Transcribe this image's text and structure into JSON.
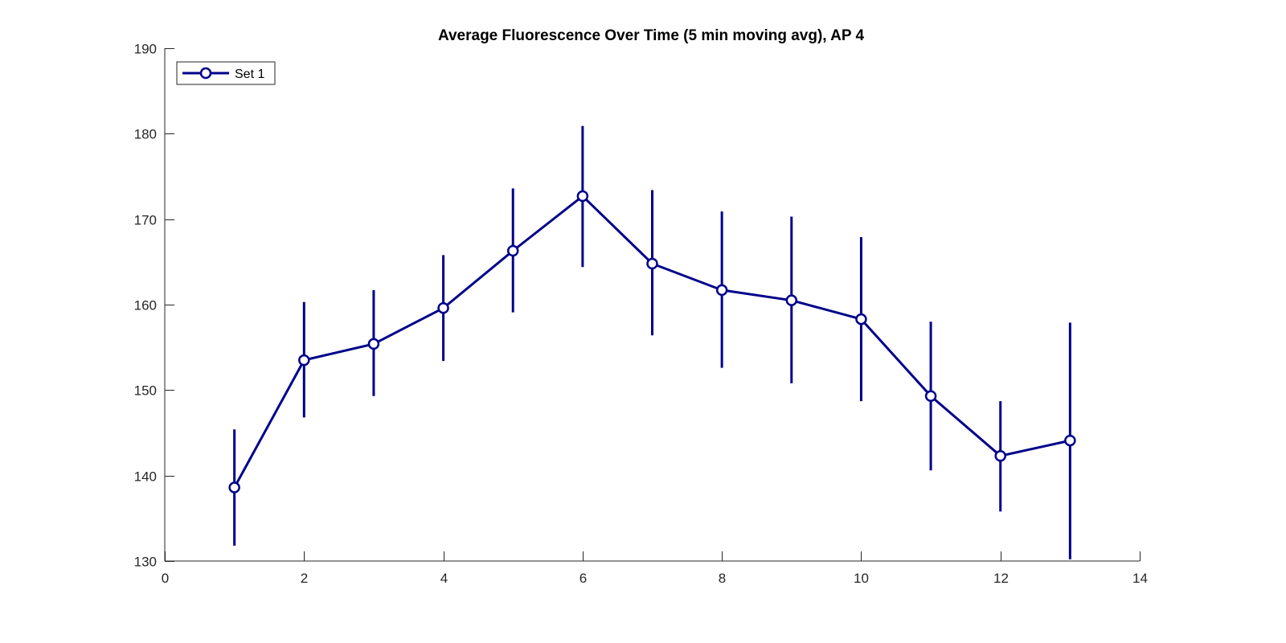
{
  "chart_data": {
    "type": "line",
    "title": "Average Fluorescence Over Time (5 min moving avg), AP 4",
    "xlabel": "",
    "ylabel": "",
    "xlim": [
      0,
      14
    ],
    "ylim": [
      130,
      190
    ],
    "xticks": [
      0,
      2,
      4,
      6,
      8,
      10,
      12,
      14
    ],
    "yticks": [
      130,
      140,
      150,
      160,
      170,
      180,
      190
    ],
    "xtick_labels": [
      "0",
      "2",
      "4",
      "6",
      "8",
      "10",
      "12",
      "14"
    ],
    "ytick_labels": [
      "130",
      "140",
      "150",
      "160",
      "170",
      "180",
      "190"
    ],
    "grid": false,
    "legend_position": "top-left",
    "series": [
      {
        "name": "Set 1",
        "color": "#00008B",
        "marker": "circle",
        "x": [
          1,
          2,
          3,
          4,
          5,
          6,
          7,
          8,
          9,
          10,
          11,
          12,
          13
        ],
        "y": [
          138.6,
          153.5,
          155.4,
          159.6,
          166.3,
          172.7,
          164.8,
          161.7,
          160.5,
          158.3,
          149.3,
          142.3,
          144.1
        ],
        "err_low": [
          131.8,
          146.8,
          149.3,
          153.4,
          159.1,
          164.4,
          156.4,
          152.6,
          150.8,
          148.7,
          140.6,
          135.8,
          130.2
        ],
        "err_high": [
          145.4,
          160.3,
          161.7,
          165.8,
          173.6,
          180.9,
          173.4,
          170.9,
          170.3,
          167.9,
          158.0,
          148.7,
          157.9
        ]
      }
    ]
  }
}
